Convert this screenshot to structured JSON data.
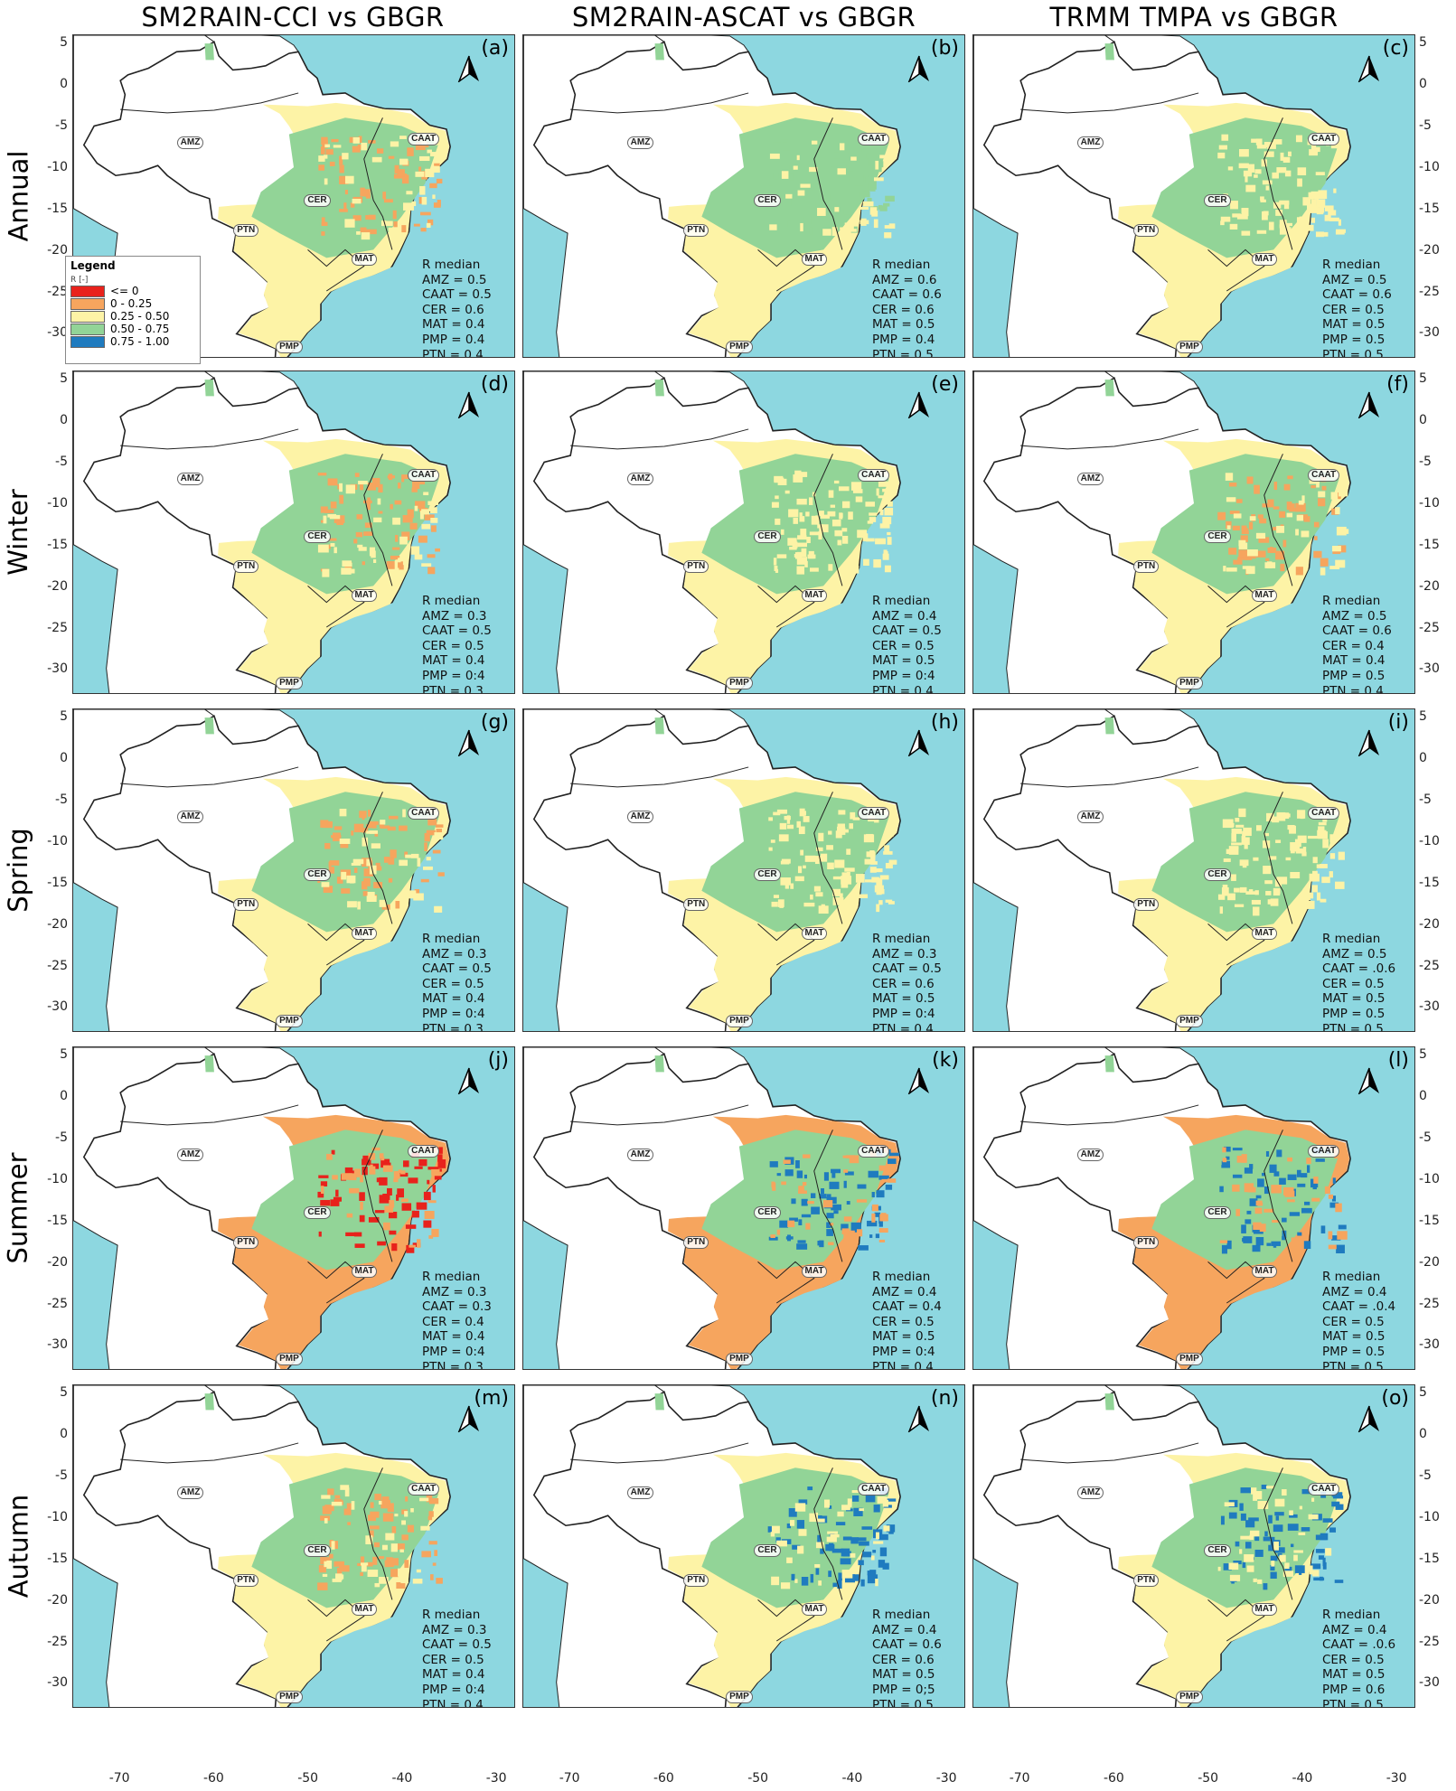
{
  "columns": [
    "SM2RAIN-CCI vs GBGR",
    "SM2RAIN-ASCAT vs GBGR",
    "TRMM TMPA vs GBGR"
  ],
  "rows": [
    "Annual",
    "Winter",
    "Spring",
    "Summer",
    "Autumn"
  ],
  "x_ticks": [
    "-70",
    "-60",
    "-50",
    "-40",
    "-30"
  ],
  "y_ticks": [
    "5",
    "0",
    "-5",
    "-10",
    "-15",
    "-20",
    "-25",
    "-30"
  ],
  "regions": [
    "AMZ",
    "CAAT",
    "CER",
    "PTN",
    "MAT",
    "PMP"
  ],
  "stats_title": "R median",
  "legend": {
    "title": "Legend",
    "unit": "R [-]",
    "items": [
      {
        "label": "<= 0",
        "color": "#e8221c"
      },
      {
        "label": "0 - 0.25",
        "color": "#f6a55e"
      },
      {
        "label": "0.25 - 0.50",
        "color": "#fdf3a6"
      },
      {
        "label": "0.50 - 0.75",
        "color": "#92d497"
      },
      {
        "label": "0.75 - 1.00",
        "color": "#1f7bbf"
      }
    ]
  },
  "colors": {
    "ocean": "#8dd7e0",
    "land": "#ffffff",
    "border": "#222222"
  },
  "panels": [
    {
      "label": "(a)",
      "stats": [
        "AMZ = 0.5",
        "CAAT = 0.5",
        "CER = 0.6",
        "MAT = 0.4",
        "PMP = 0.4",
        "PTN = 0.4"
      ],
      "fill": {
        "low": "#fdf3a6",
        "high": "#92d497",
        "extra": "#f6a55e"
      }
    },
    {
      "label": "(b)",
      "stats": [
        "AMZ = 0.6",
        "CAAT = 0.6",
        "CER = 0.6",
        "MAT = 0.5",
        "PMP = 0.4",
        "PTN = 0.5"
      ],
      "fill": {
        "low": "#fdf3a6",
        "high": "#92d497",
        "extra": "#92d497"
      }
    },
    {
      "label": "(c)",
      "stats": [
        "AMZ = 0.5",
        "CAAT = 0.6",
        "CER = 0.5",
        "MAT = 0.5",
        "PMP = 0.5",
        "PTN = 0.5"
      ],
      "fill": {
        "low": "#fdf3a6",
        "high": "#92d497",
        "extra": "#fdf3a6"
      }
    },
    {
      "label": "(d)",
      "stats": [
        "AMZ = 0.3",
        "CAAT = 0.5",
        "CER = 0.5",
        "MAT = 0.4",
        "PMP = 0:4",
        "PTN = 0.3"
      ],
      "fill": {
        "low": "#fdf3a6",
        "high": "#92d497",
        "extra": "#f6a55e"
      }
    },
    {
      "label": "(e)",
      "stats": [
        "AMZ = 0.4",
        "CAAT = 0.5",
        "CER = 0.5",
        "MAT = 0.5",
        "PMP = 0:4",
        "PTN = 0.4"
      ],
      "fill": {
        "low": "#fdf3a6",
        "high": "#92d497",
        "extra": "#fdf3a6"
      }
    },
    {
      "label": "(f)",
      "stats": [
        "AMZ = 0.5",
        "CAAT = 0.6",
        "CER = 0.4",
        "MAT = 0.4",
        "PMP = 0.5",
        "PTN = 0.4"
      ],
      "fill": {
        "low": "#fdf3a6",
        "high": "#92d497",
        "extra": "#f6a55e"
      }
    },
    {
      "label": "(g)",
      "stats": [
        "AMZ = 0.3",
        "CAAT = 0.5",
        "CER = 0.5",
        "MAT = 0.4",
        "PMP = 0:4",
        "PTN = 0.3"
      ],
      "fill": {
        "low": "#fdf3a6",
        "high": "#92d497",
        "extra": "#f6a55e"
      }
    },
    {
      "label": "(h)",
      "stats": [
        "AMZ = 0.3",
        "CAAT = 0.5",
        "CER = 0.6",
        "MAT = 0.5",
        "PMP = 0:4",
        "PTN = 0.4"
      ],
      "fill": {
        "low": "#fdf3a6",
        "high": "#92d497",
        "extra": "#fdf3a6"
      }
    },
    {
      "label": "(i)",
      "stats": [
        "AMZ = 0.5",
        "CAAT = .0.6",
        "CER = 0.5",
        "MAT = 0.5",
        "PMP = 0.5",
        "PTN = 0.5"
      ],
      "fill": {
        "low": "#fdf3a6",
        "high": "#92d497",
        "extra": "#fdf3a6"
      }
    },
    {
      "label": "(j)",
      "stats": [
        "AMZ = 0.3",
        "CAAT = 0.3",
        "CER = 0.4",
        "MAT = 0.4",
        "PMP = 0:4",
        "PTN = 0.3"
      ],
      "fill": {
        "low": "#f6a55e",
        "high": "#92d497",
        "extra": "#e8221c"
      }
    },
    {
      "label": "(k)",
      "stats": [
        "AMZ = 0.4",
        "CAAT = 0.4",
        "CER = 0.5",
        "MAT = 0.5",
        "PMP = 0:4",
        "PTN = 0.4"
      ],
      "fill": {
        "low": "#f6a55e",
        "high": "#92d497",
        "extra": "#1f7bbf"
      }
    },
    {
      "label": "(l)",
      "stats": [
        "AMZ = 0.4",
        "CAAT = .0.4",
        "CER = 0.5",
        "MAT = 0.5",
        "PMP = 0.5",
        "PTN = 0.5"
      ],
      "fill": {
        "low": "#f6a55e",
        "high": "#92d497",
        "extra": "#1f7bbf"
      }
    },
    {
      "label": "(m)",
      "stats": [
        "AMZ = 0.3",
        "CAAT = 0.5",
        "CER = 0.5",
        "MAT = 0.4",
        "PMP = 0:4",
        "PTN = 0.4"
      ],
      "fill": {
        "low": "#fdf3a6",
        "high": "#92d497",
        "extra": "#f6a55e"
      }
    },
    {
      "label": "(n)",
      "stats": [
        "AMZ = 0.4",
        "CAAT = 0.6",
        "CER = 0.6",
        "MAT = 0.5",
        "PMP = 0;5",
        "PTN = 0.5"
      ],
      "fill": {
        "low": "#fdf3a6",
        "high": "#92d497",
        "extra": "#1f7bbf"
      }
    },
    {
      "label": "(o)",
      "stats": [
        "AMZ = 0.4",
        "CAAT = .0.6",
        "CER = 0.5",
        "MAT = 0.5",
        "PMP = 0.6",
        "PTN = 0.5"
      ],
      "fill": {
        "low": "#fdf3a6",
        "high": "#92d497",
        "extra": "#1f7bbf"
      }
    }
  ]
}
